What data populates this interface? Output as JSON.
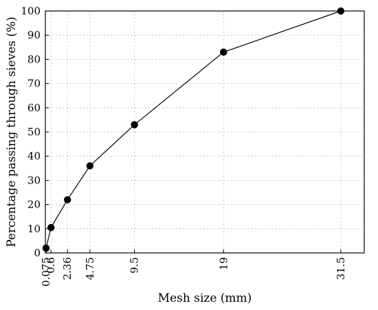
{
  "chart_data": {
    "type": "line",
    "title": "",
    "xlabel": "Mesh size (mm)",
    "ylabel": "Percentage passing through sieves (%)",
    "xlim": [
      0,
      34
    ],
    "ylim": [
      0,
      100
    ],
    "x_ticks": [
      "0.075",
      "0.6",
      "2.36",
      "4.75",
      "9.5",
      "19",
      "31.5"
    ],
    "y_ticks": [
      0,
      10,
      20,
      30,
      40,
      50,
      60,
      70,
      80,
      90,
      100
    ],
    "grid": true,
    "marker": "filled-circle",
    "line_color": "#000000",
    "series": [
      {
        "x": [
          0.075,
          0.6,
          2.36,
          4.75,
          9.5,
          19,
          31.5
        ],
        "y": [
          2,
          10.5,
          22,
          36,
          53,
          83,
          100
        ]
      }
    ]
  }
}
